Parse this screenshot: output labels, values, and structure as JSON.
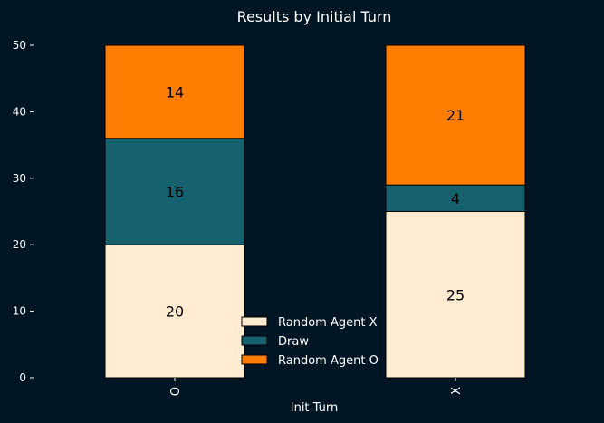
{
  "chart_data": {
    "type": "bar",
    "stacked": true,
    "title": "Results by Initial Turn",
    "xlabel": "Init Turn",
    "ylabel": "",
    "categories": [
      "O",
      "X"
    ],
    "series": [
      {
        "name": "Random Agent X",
        "values": [
          20,
          25
        ],
        "color": "#FFECD1"
      },
      {
        "name": "Draw",
        "values": [
          16,
          4
        ],
        "color": "#15616D"
      },
      {
        "name": "Random Agent O",
        "values": [
          14,
          21
        ],
        "color": "#FF7D00"
      }
    ],
    "ylim": [
      0,
      50
    ],
    "yticks": [
      0,
      10,
      20,
      30,
      40,
      50
    ],
    "grid": false,
    "legend_position": "bottom-center",
    "data_labels": true
  }
}
